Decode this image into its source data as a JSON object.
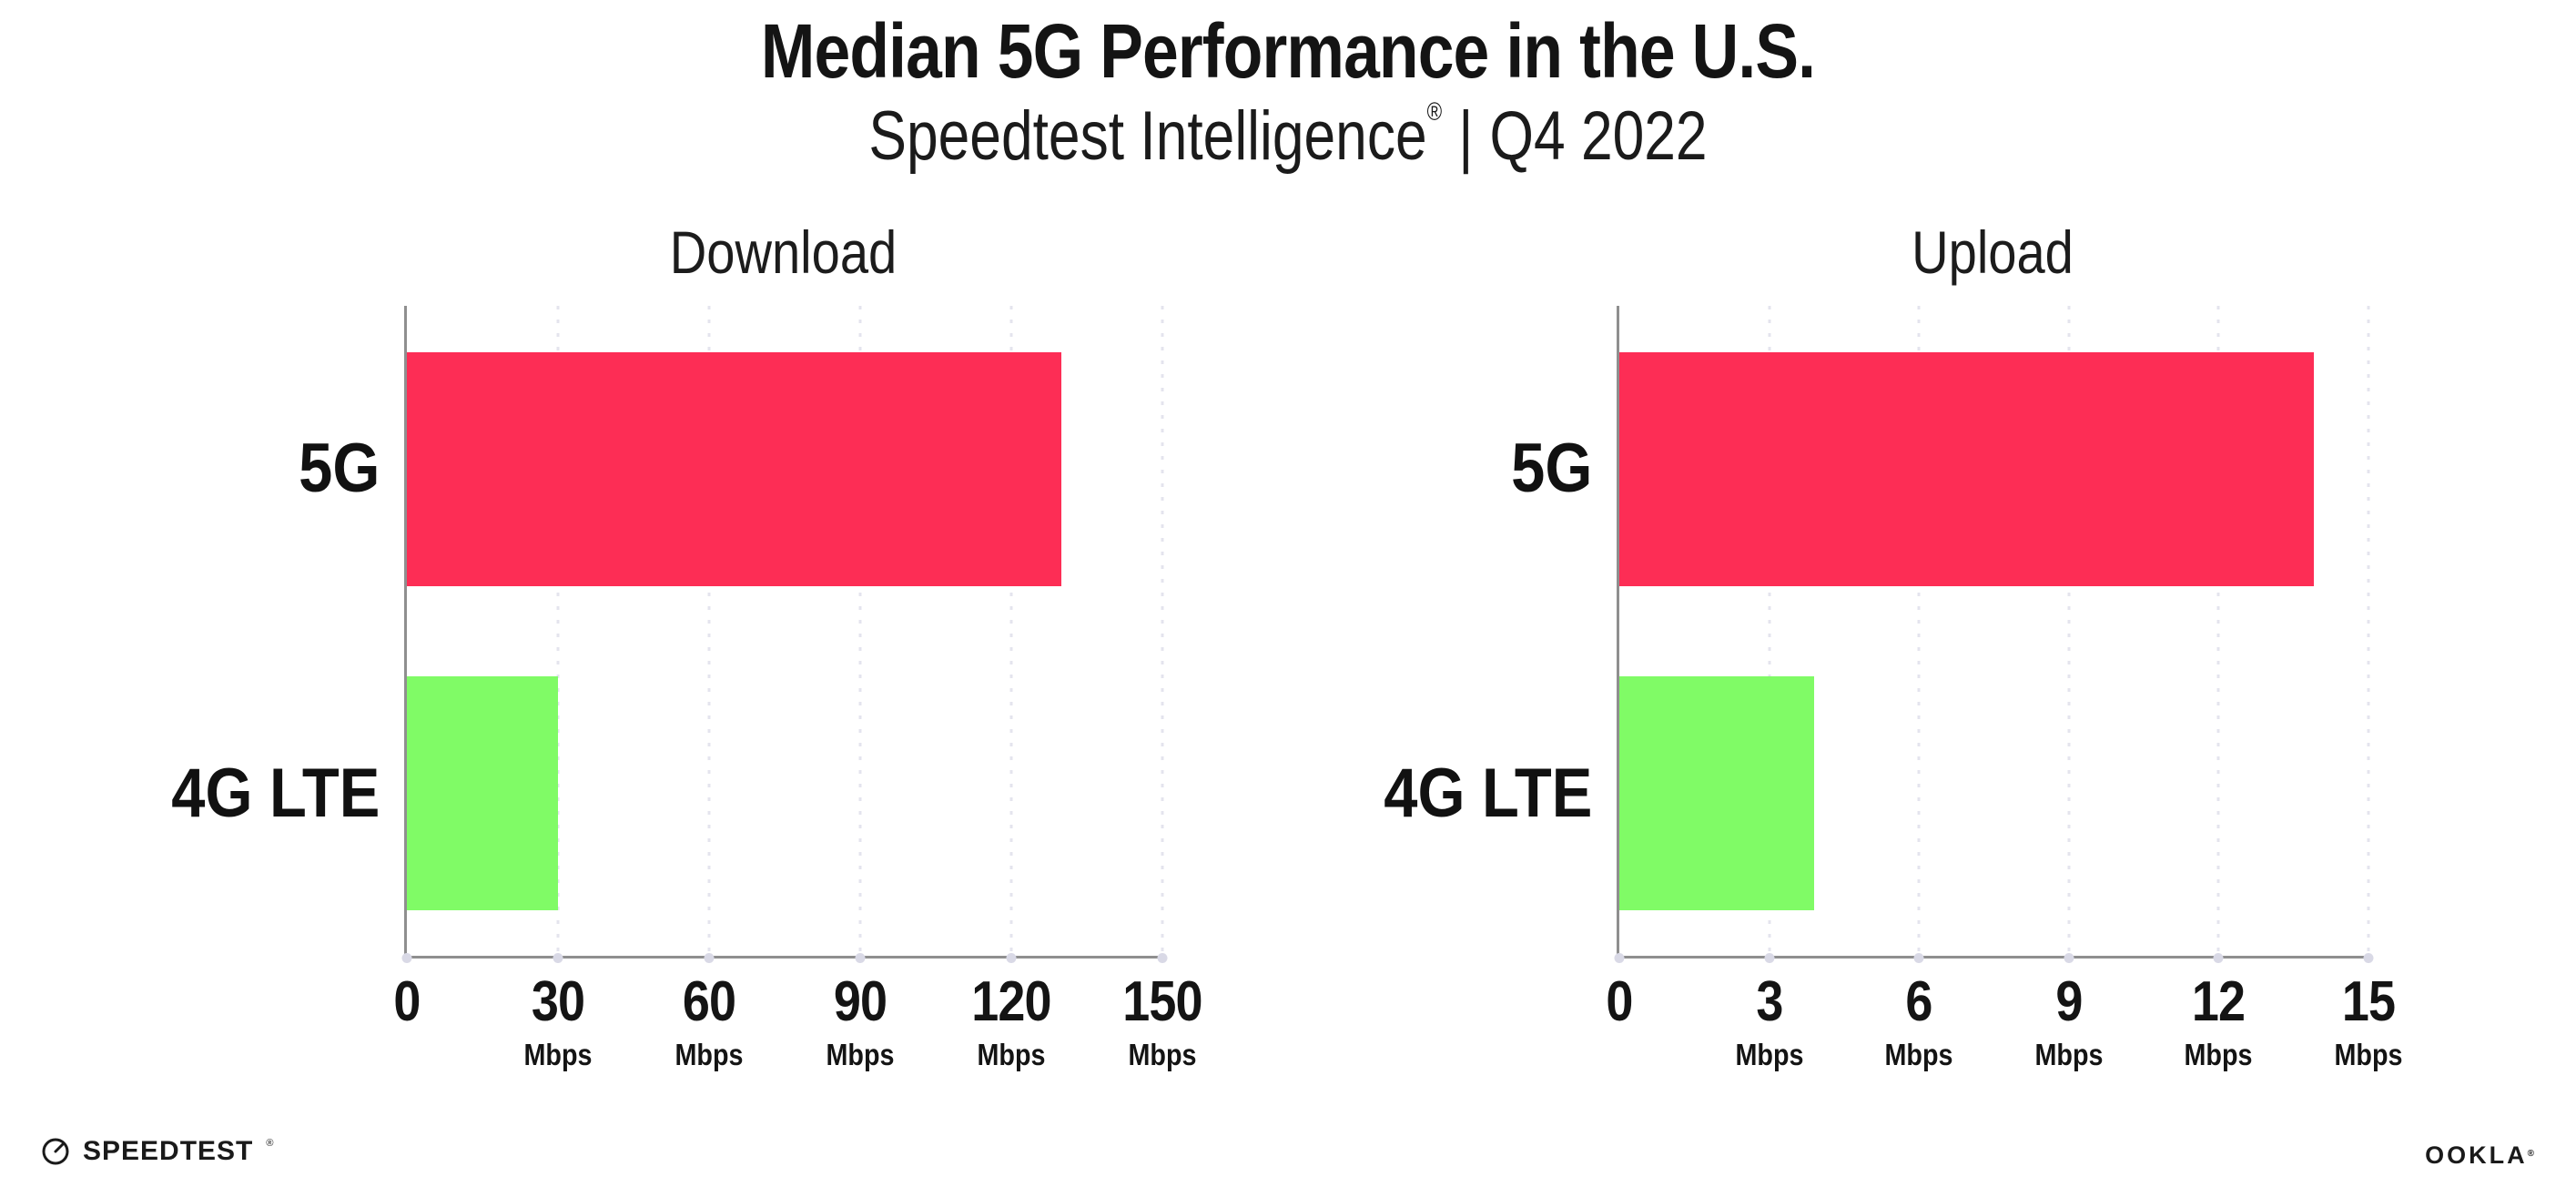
{
  "header": {
    "title": "Median 5G Performance in the U.S.",
    "subtitle_brand": "Speedtest Intelligence",
    "subtitle_reg": "®",
    "subtitle_separator": "|",
    "subtitle_period": "Q4 2022"
  },
  "colors": {
    "bar_5g": "#FD2D55",
    "bar_4g_lte": "#80FB66",
    "axis": "#8F8F8F",
    "gridline": "#E4E4EE",
    "tick_dot": "#D9D9E6",
    "text": "#141414"
  },
  "chart_data": [
    {
      "type": "bar",
      "orientation": "horizontal",
      "title": "Download",
      "categories": [
        "5G",
        "4G LTE"
      ],
      "values": [
        130,
        30
      ],
      "unit": "Mbps",
      "xticks": [
        0,
        30,
        60,
        90,
        120,
        150
      ],
      "xlim": [
        0,
        150
      ],
      "grid": "dotted-vertical",
      "legend": "none"
    },
    {
      "type": "bar",
      "orientation": "horizontal",
      "title": "Upload",
      "categories": [
        "5G",
        "4G LTE"
      ],
      "values": [
        13.9,
        3.9
      ],
      "unit": "Mbps",
      "xticks": [
        0,
        3,
        6,
        9,
        12,
        15
      ],
      "xlim": [
        0,
        15
      ],
      "grid": "dotted-vertical",
      "legend": "none"
    }
  ],
  "footer": {
    "speedtest_label": "SPEEDTEST",
    "speedtest_reg": "®",
    "ookla_label": "OOKLA",
    "ookla_reg": "®"
  }
}
